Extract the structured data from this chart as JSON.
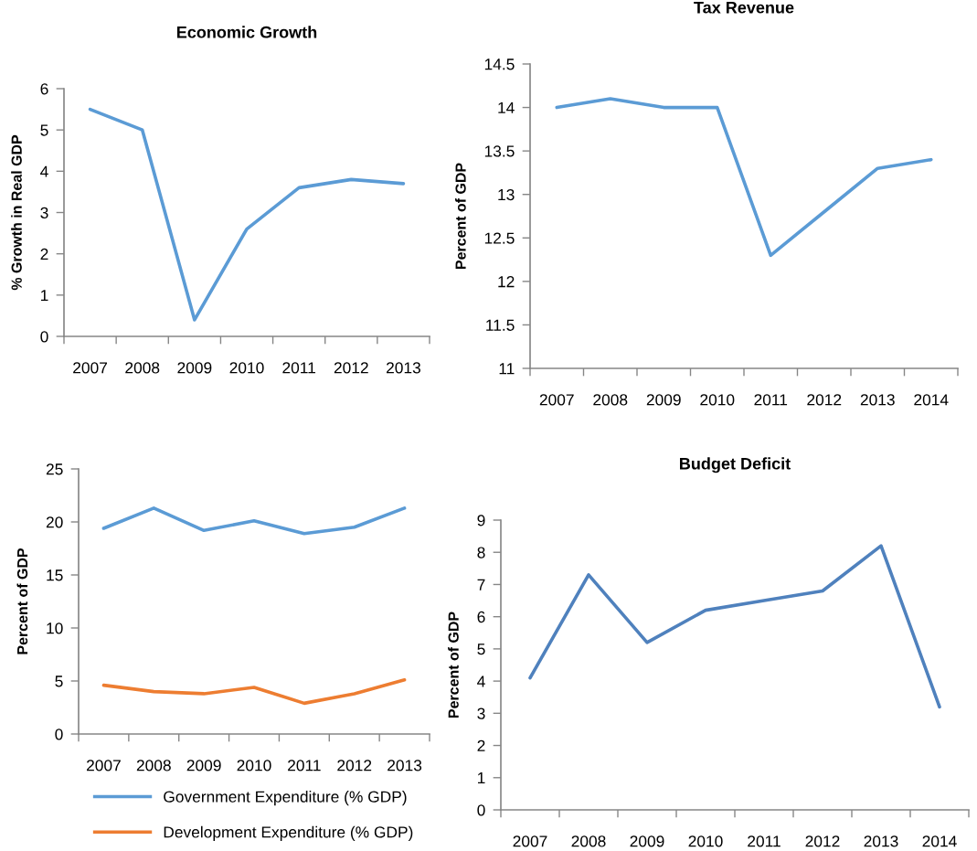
{
  "chart_data": [
    {
      "type": "line",
      "title": "Economic Growth",
      "ylabel": "% Growth in Real GDP",
      "categories": [
        "2007",
        "2008",
        "2009",
        "2010",
        "2011",
        "2012",
        "2013"
      ],
      "series": [
        {
          "color": "#5b9bd5",
          "values": [
            5.5,
            5.0,
            0.4,
            2.6,
            3.6,
            3.8,
            3.7
          ]
        }
      ],
      "ylim": [
        0,
        6
      ],
      "yticks": [
        0,
        1,
        2,
        3,
        4,
        5,
        6
      ]
    },
    {
      "type": "line",
      "title": "Tax Revenue",
      "ylabel": "Percent of GDP",
      "categories": [
        "2007",
        "2008",
        "2009",
        "2010",
        "2011",
        "2012",
        "2013",
        "2014"
      ],
      "series": [
        {
          "color": "#5b9bd5",
          "values": [
            14.0,
            14.1,
            14.0,
            14.0,
            12.3,
            12.8,
            13.3,
            13.4
          ]
        }
      ],
      "ylim": [
        11,
        14.5
      ],
      "yticks": [
        11,
        11.5,
        12,
        12.5,
        13,
        13.5,
        14,
        14.5
      ]
    },
    {
      "type": "line",
      "ylabel": "Percent of GDP",
      "categories": [
        "2007",
        "2008",
        "2009",
        "2010",
        "2011",
        "2012",
        "2013"
      ],
      "series": [
        {
          "name": "Government Expenditure (% GDP)",
          "color": "#5b9bd5",
          "values": [
            19.4,
            21.3,
            19.2,
            20.1,
            18.9,
            19.5,
            21.3
          ]
        },
        {
          "name": "Development Expenditure (% GDP)",
          "color": "#ed7d31",
          "values": [
            4.6,
            4.0,
            3.8,
            4.4,
            2.9,
            3.8,
            5.1
          ]
        }
      ],
      "ylim": [
        0,
        25
      ],
      "yticks": [
        0,
        5,
        10,
        15,
        20,
        25
      ],
      "legend": "bottom"
    },
    {
      "type": "line",
      "title": "Budget Deficit",
      "ylabel": "Percent of GDP",
      "categories": [
        "2007",
        "2008",
        "2009",
        "2010",
        "2011",
        "2012",
        "2013",
        "2014"
      ],
      "series": [
        {
          "color": "#4f81bd",
          "values": [
            4.1,
            7.3,
            5.2,
            6.2,
            6.5,
            6.8,
            8.2,
            3.2
          ]
        }
      ],
      "ylim": [
        0,
        9
      ],
      "yticks": [
        0,
        1,
        2,
        3,
        4,
        5,
        6,
        7,
        8,
        9
      ]
    }
  ]
}
